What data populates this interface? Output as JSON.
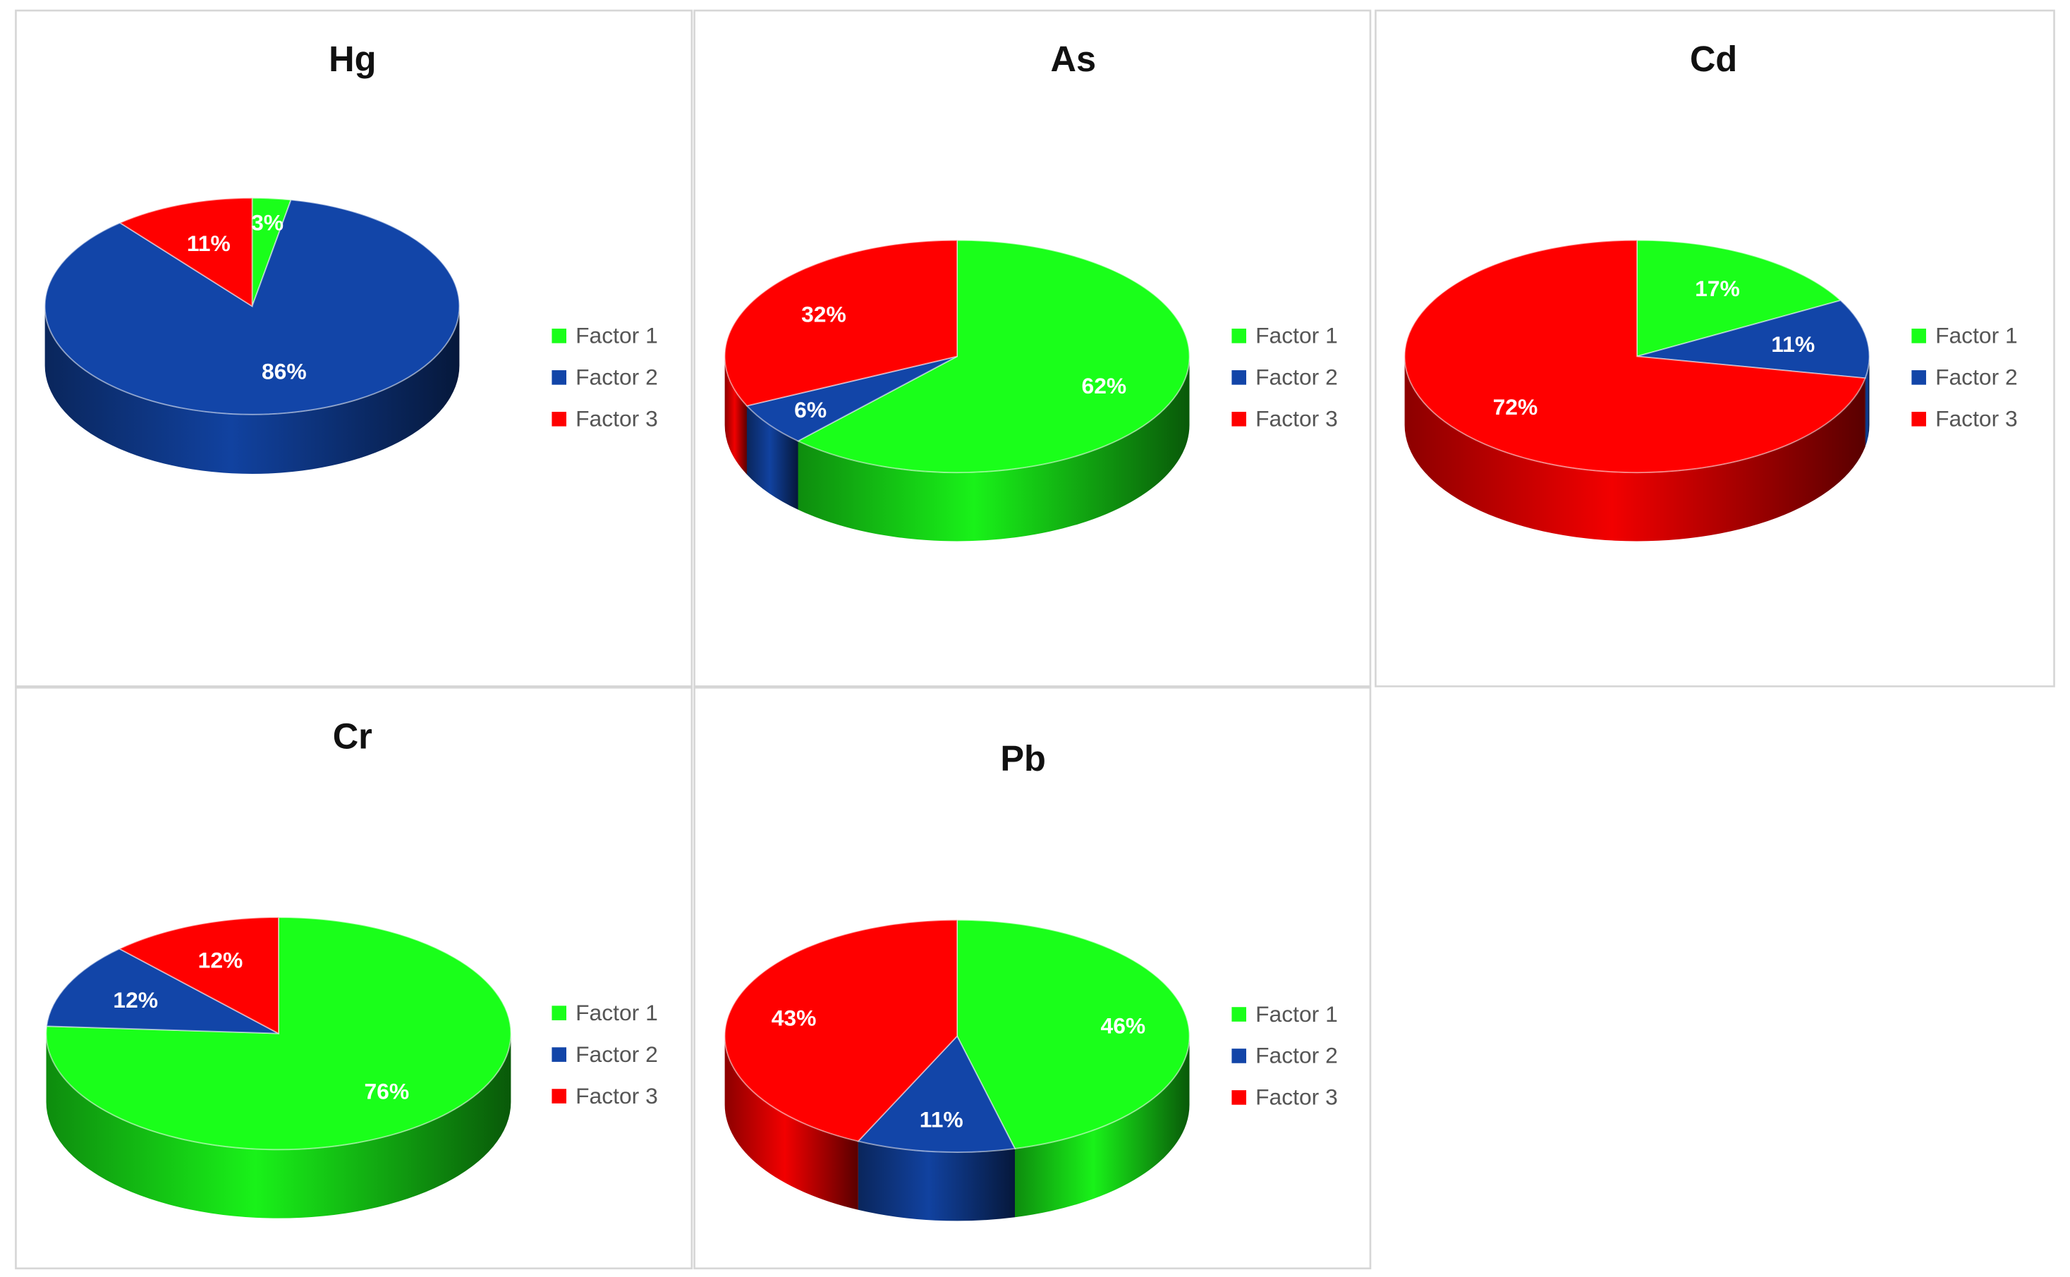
{
  "colors": {
    "factor1": "#1aff1a",
    "factor2": "#1245a8",
    "factor3": "#ff0000",
    "panel_border": "#d6d6d6",
    "title_text": "#111111",
    "legend_text": "#555555",
    "label_text": "#ffffff"
  },
  "legend": {
    "position": "right"
  },
  "chart_data": [
    {
      "type": "pie",
      "title": "Hg",
      "categories": [
        "Factor 1",
        "Factor 2",
        "Factor 3"
      ],
      "values": [
        3,
        86,
        11
      ],
      "labels": [
        "3%",
        "86%",
        "11%"
      ]
    },
    {
      "type": "pie",
      "title": "As",
      "categories": [
        "Factor 1",
        "Factor 2",
        "Factor 3"
      ],
      "values": [
        62,
        6,
        32
      ],
      "labels": [
        "62%",
        "6%",
        "32%"
      ]
    },
    {
      "type": "pie",
      "title": "Cd",
      "categories": [
        "Factor 1",
        "Factor 2",
        "Factor 3"
      ],
      "values": [
        17,
        11,
        72
      ],
      "labels": [
        "17%",
        "11%",
        "72%"
      ]
    },
    {
      "type": "pie",
      "title": "Cr",
      "categories": [
        "Factor 1",
        "Factor 2",
        "Factor 3"
      ],
      "values": [
        76,
        12,
        12
      ],
      "labels": [
        "76%",
        "12%",
        "12%"
      ]
    },
    {
      "type": "pie",
      "title": "Pb",
      "categories": [
        "Factor 1",
        "Factor 2",
        "Factor 3"
      ],
      "values": [
        46,
        11,
        43
      ],
      "labels": [
        "46%",
        "11%",
        "43%"
      ]
    }
  ]
}
